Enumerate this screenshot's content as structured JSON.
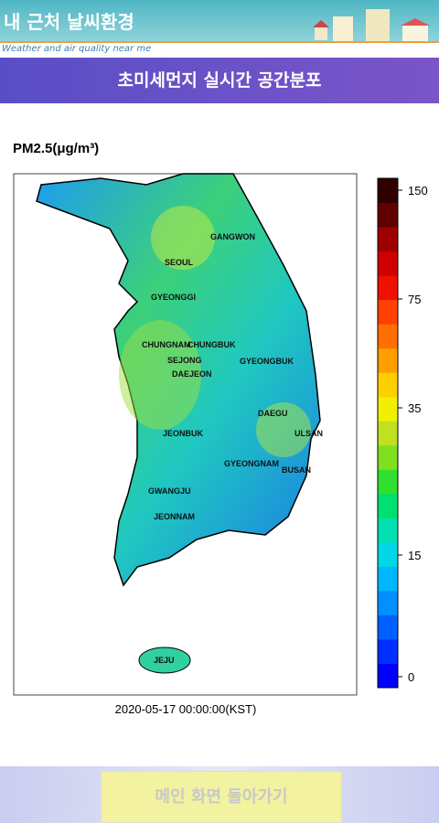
{
  "header": {
    "title": "내 근처 날씨환경",
    "subtitle": "Weather and air quality near me"
  },
  "banner": "초미세먼지 실시간 공간분포",
  "map": {
    "unit_label": "PM2.5(μg/m³)",
    "regions": [
      "SEOUL",
      "GANGWON",
      "GYEONGGI",
      "CHUNGNAM",
      "CHUNGBUK",
      "SEJONG",
      "DAEJEON",
      "GYEONGBUK",
      "DAEGU",
      "ULSAN",
      "JEONBUK",
      "GYEONGNAM",
      "BUSAN",
      "GWANGJU",
      "JEONNAM",
      "JEJU"
    ],
    "colorbar_ticks": [
      0,
      15,
      35,
      75,
      150
    ],
    "timestamp": "2020-05-17 00:00:00(KST)"
  },
  "button": "메인 화면 돌아가기"
}
